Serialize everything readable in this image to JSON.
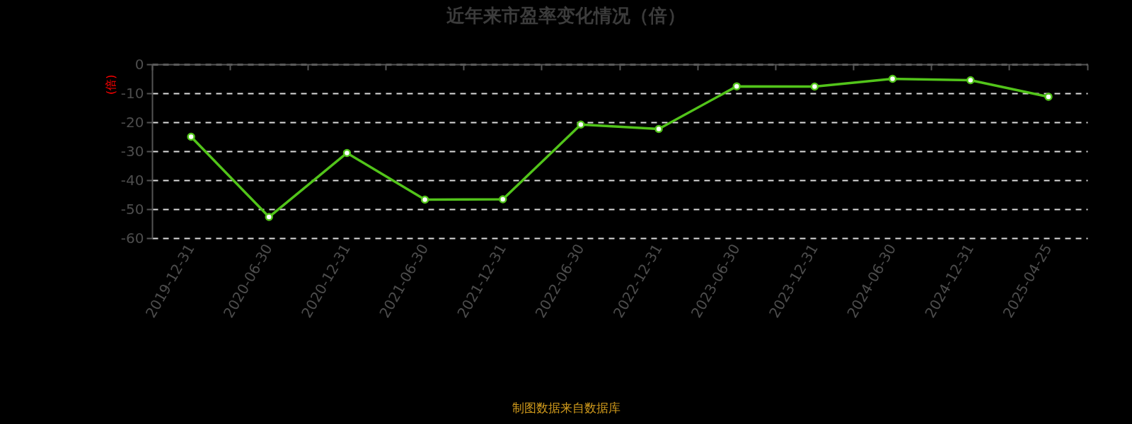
{
  "chart_data": {
    "type": "line",
    "title": "近年来市盈率变化情况（倍）",
    "ylabel": "(倍)",
    "annotations": [
      "制图数据来自数据库"
    ],
    "categories": [
      "2019-12-31",
      "2020-06-30",
      "2020-12-31",
      "2021-06-30",
      "2021-12-31",
      "2022-06-30",
      "2022-12-31",
      "2023-06-30",
      "2023-12-31",
      "2024-06-30",
      "2024-12-31",
      "2025-04-25"
    ],
    "series": [
      {
        "color": "#52c41a",
        "values": [
          -25.0,
          -52.7,
          -30.6,
          -46.7,
          -46.6,
          -20.8,
          -22.3,
          -7.6,
          -7.7,
          -5.0,
          -5.5,
          -11.2
        ]
      }
    ],
    "ylim": [
      -60,
      0
    ],
    "yticks": [
      0,
      -10,
      -20,
      -30,
      -40,
      -50,
      -60
    ],
    "grid": "y",
    "marker": "circle",
    "line_style": "solid"
  }
}
